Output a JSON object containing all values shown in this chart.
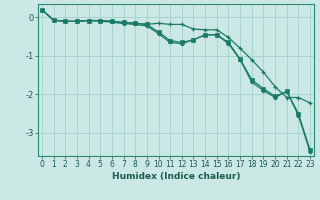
{
  "xlabel": "Humidex (Indice chaleur)",
  "background_color": "#cce8e4",
  "grid_color": "#a8d4ce",
  "line_color": "#1a7a6a",
  "x_values": [
    0,
    1,
    2,
    3,
    4,
    5,
    6,
    7,
    8,
    9,
    10,
    11,
    12,
    13,
    14,
    15,
    16,
    17,
    18,
    19,
    20,
    21,
    22,
    23
  ],
  "line1_plus": [
    0.2,
    -0.07,
    -0.1,
    -0.1,
    -0.08,
    -0.08,
    -0.1,
    -0.13,
    -0.15,
    -0.18,
    -0.15,
    -0.18,
    -0.18,
    -0.3,
    -0.32,
    -0.32,
    -0.52,
    -0.8,
    -1.1,
    -1.42,
    -1.8,
    -2.08,
    -2.08,
    -2.22
  ],
  "line2_dot": [
    0.2,
    -0.07,
    -0.1,
    -0.1,
    -0.08,
    -0.1,
    -0.12,
    -0.16,
    -0.18,
    -0.22,
    -0.42,
    -0.65,
    -0.68,
    -0.58,
    -0.45,
    -0.45,
    -0.68,
    -1.1,
    -1.68,
    -1.9,
    -2.08,
    -1.92,
    -2.55,
    -3.5
  ],
  "line3_sq": [
    0.2,
    -0.07,
    -0.1,
    -0.1,
    -0.08,
    -0.08,
    -0.1,
    -0.13,
    -0.15,
    -0.18,
    -0.38,
    -0.6,
    -0.65,
    -0.58,
    -0.45,
    -0.45,
    -0.65,
    -1.08,
    -1.62,
    -1.85,
    -2.05,
    -1.92,
    -2.5,
    -3.45
  ],
  "ylim": [
    -3.6,
    0.35
  ],
  "yticks": [
    0,
    -1,
    -2,
    -3
  ],
  "xlim": [
    -0.3,
    23.3
  ],
  "tick_fontsize": 5.5,
  "xlabel_fontsize": 6.5
}
